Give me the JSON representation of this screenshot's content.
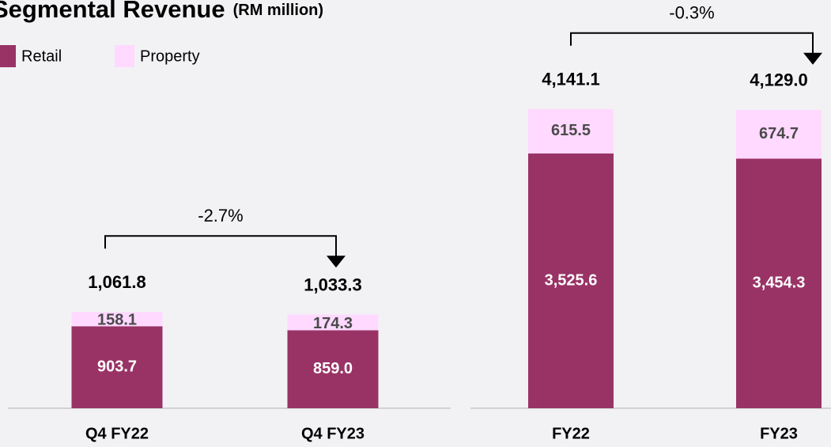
{
  "title": "Segmental Revenue",
  "subtitle": "(RM million)",
  "chart_data": [
    {
      "type": "bar",
      "stacked": true,
      "categories": [
        "Q4 FY22",
        "Q4 FY23"
      ],
      "series": [
        {
          "name": "Retail",
          "color": "#993366",
          "values": [
            903.7,
            859.0
          ],
          "value_labels": [
            "903.7",
            "859.0"
          ]
        },
        {
          "name": "Property",
          "color": "#ffd9ff",
          "values": [
            158.1,
            174.3
          ]
        }
      ],
      "totals": [
        1061.8,
        1033.3
      ],
      "total_labels": [
        "1,061.8",
        "1,033.3"
      ],
      "annotation": "-2.7%",
      "ylim": [
        0,
        4500
      ]
    },
    {
      "type": "bar",
      "stacked": true,
      "categories": [
        "FY22",
        "FY23"
      ],
      "series": [
        {
          "name": "Retail",
          "color": "#993366",
          "values": [
            3525.6,
            3454.3
          ],
          "value_labels": [
            "3,525.6",
            "3,454.3"
          ]
        },
        {
          "name": "Property",
          "color": "#ffd9ff",
          "values": [
            615.5,
            674.7
          ]
        }
      ],
      "totals": [
        4141.1,
        4129.0
      ],
      "total_labels": [
        "4,141.1",
        "4,129.0"
      ],
      "annotation": "-0.3%",
      "ylim": [
        0,
        5650
      ]
    }
  ]
}
